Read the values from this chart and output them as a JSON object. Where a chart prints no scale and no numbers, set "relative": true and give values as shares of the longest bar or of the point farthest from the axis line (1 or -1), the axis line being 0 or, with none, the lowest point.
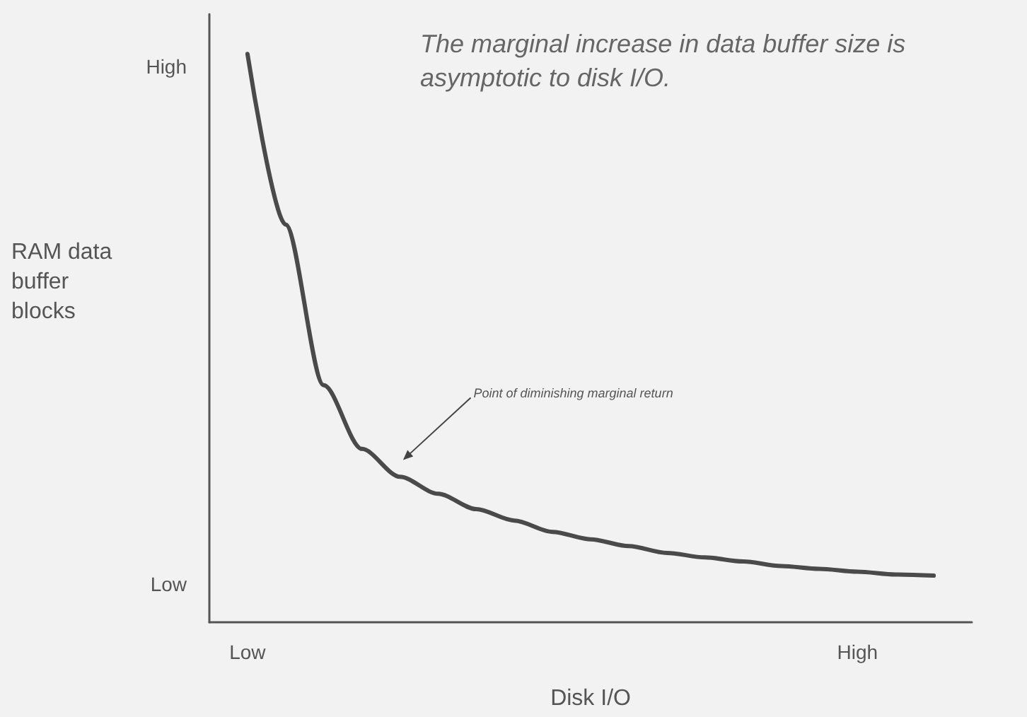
{
  "chart_data": {
    "type": "line",
    "title": "The marginal increase in data buffer size is asymptotic to disk I/O.",
    "xlabel": "Disk I/O",
    "ylabel": "RAM data buffer blocks",
    "annotations": [
      "High",
      "Low",
      "Point of diminishing marginal return"
    ],
    "categories": [
      null,
      "Low",
      null,
      null,
      null,
      null,
      null,
      null,
      null,
      null,
      null,
      null,
      null,
      null,
      null,
      null,
      null,
      "High",
      null,
      null,
      null
    ],
    "series": [
      {
        "color": "#4a4a4a",
        "values": [
          null,
          1,
          0.7,
          0.417,
          0.305,
          0.256,
          0.226,
          0.199,
          0.179,
          0.159,
          0.146,
          0.134,
          0.122,
          0.114,
          0.107,
          0.099,
          0.094,
          0.089,
          0.084,
          0.082,
          null
        ]
      }
    ],
    "relative": true,
    "grid": false,
    "marker": "none",
    "line_style": "solid"
  }
}
